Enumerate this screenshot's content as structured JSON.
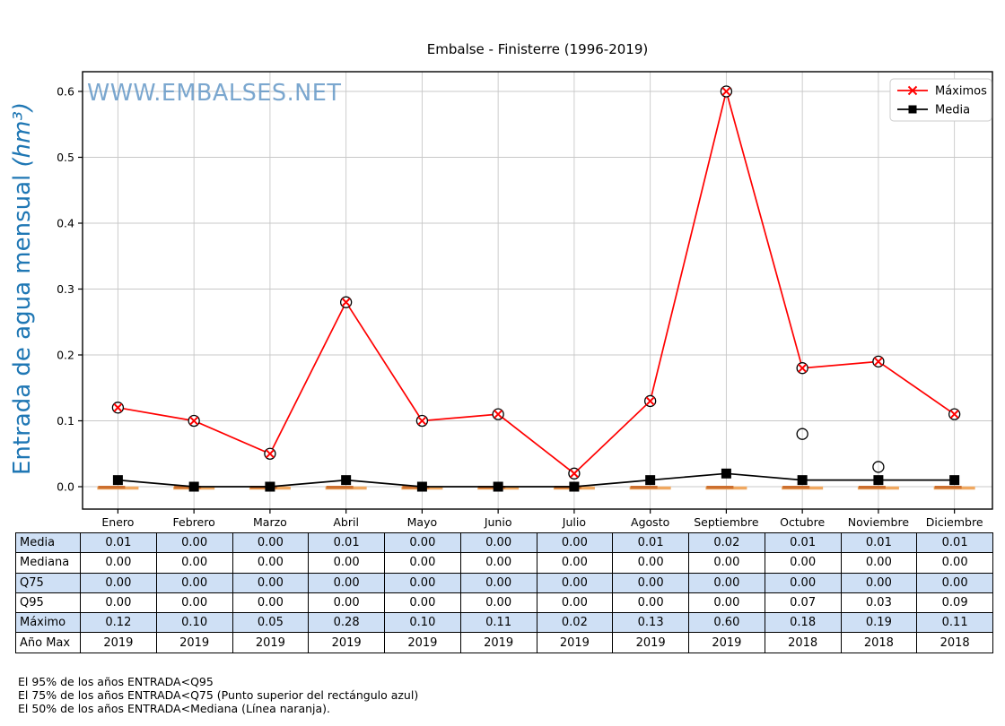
{
  "title": "Embalse - Finisterre (1996-2019)",
  "watermark": "WWW.EMBALSES.NET",
  "y_axis": {
    "label_main": "Entrada de agua mensual ",
    "label_unit": "(hm³)",
    "tick_labels": [
      "0.0",
      "0.1",
      "0.2",
      "0.3",
      "0.4",
      "0.5",
      "0.6"
    ]
  },
  "legend": {
    "items": [
      "Máximos",
      "Media"
    ]
  },
  "colors": {
    "maximos_red": "#ff0000",
    "media_black": "#000000",
    "median_orange_light": "#f0a860",
    "median_orange_dark": "#cc6f2f",
    "axis_label_blue": "#1f77b4",
    "watermark_blue": "#5b92c4",
    "table_row_blue": "#cfe0f5",
    "grid_gray": "#c8c8c8"
  },
  "chart_data": {
    "type": "line",
    "title": "Embalse - Finisterre (1996-2019)",
    "ylabel": "Entrada de agua mensual (hm³)",
    "xlabel": "",
    "categories": [
      "Enero",
      "Febrero",
      "Marzo",
      "Abril",
      "Mayo",
      "Junio",
      "Julio",
      "Agosto",
      "Septiembre",
      "Octubre",
      "Noviembre",
      "Diciembre"
    ],
    "series": [
      {
        "name": "Máximos",
        "color": "#ff0000",
        "marker": "x-circled",
        "values": [
          0.12,
          0.1,
          0.05,
          0.28,
          0.1,
          0.11,
          0.02,
          0.13,
          0.6,
          0.18,
          0.19,
          0.11
        ]
      },
      {
        "name": "Media",
        "color": "#000000",
        "marker": "square",
        "values": [
          0.01,
          0.0,
          0.0,
          0.01,
          0.0,
          0.0,
          0.0,
          0.01,
          0.02,
          0.01,
          0.01,
          0.01
        ]
      }
    ],
    "boxplot_overlay": {
      "medians": [
        0.0,
        0.0,
        0.0,
        0.0,
        0.0,
        0.0,
        0.0,
        0.0,
        0.0,
        0.0,
        0.0,
        0.0
      ],
      "outlier_circles": [
        {
          "category": "Octubre",
          "value": 0.08
        },
        {
          "category": "Noviembre",
          "value": 0.03
        }
      ]
    },
    "ylim": [
      0,
      0.63
    ],
    "yticks": [
      0.0,
      0.1,
      0.2,
      0.3,
      0.4,
      0.5,
      0.6
    ],
    "grid": true,
    "legend_position": "upper right"
  },
  "table": {
    "rows": [
      {
        "label": "Media",
        "shaded": true,
        "values": [
          "0.01",
          "0.00",
          "0.00",
          "0.01",
          "0.00",
          "0.00",
          "0.00",
          "0.01",
          "0.02",
          "0.01",
          "0.01",
          "0.01"
        ]
      },
      {
        "label": "Mediana",
        "shaded": false,
        "values": [
          "0.00",
          "0.00",
          "0.00",
          "0.00",
          "0.00",
          "0.00",
          "0.00",
          "0.00",
          "0.00",
          "0.00",
          "0.00",
          "0.00"
        ]
      },
      {
        "label": "Q75",
        "shaded": true,
        "values": [
          "0.00",
          "0.00",
          "0.00",
          "0.00",
          "0.00",
          "0.00",
          "0.00",
          "0.00",
          "0.00",
          "0.00",
          "0.00",
          "0.00"
        ]
      },
      {
        "label": "Q95",
        "shaded": false,
        "values": [
          "0.00",
          "0.00",
          "0.00",
          "0.00",
          "0.00",
          "0.00",
          "0.00",
          "0.00",
          "0.00",
          "0.07",
          "0.03",
          "0.09"
        ]
      },
      {
        "label": "Máximo",
        "shaded": true,
        "values": [
          "0.12",
          "0.10",
          "0.05",
          "0.28",
          "0.10",
          "0.11",
          "0.02",
          "0.13",
          "0.60",
          "0.18",
          "0.19",
          "0.11"
        ]
      },
      {
        "label": "Año Max",
        "shaded": false,
        "values": [
          "2019",
          "2019",
          "2019",
          "2019",
          "2019",
          "2019",
          "2019",
          "2019",
          "2019",
          "2018",
          "2018",
          "2018"
        ]
      }
    ]
  },
  "notes": [
    "El 95% de los años ENTRADA<Q95",
    "El 75% de los años ENTRADA<Q75 (Punto superior del rectángulo azul)",
    "El 50% de los años ENTRADA<Mediana (Línea naranja)."
  ]
}
